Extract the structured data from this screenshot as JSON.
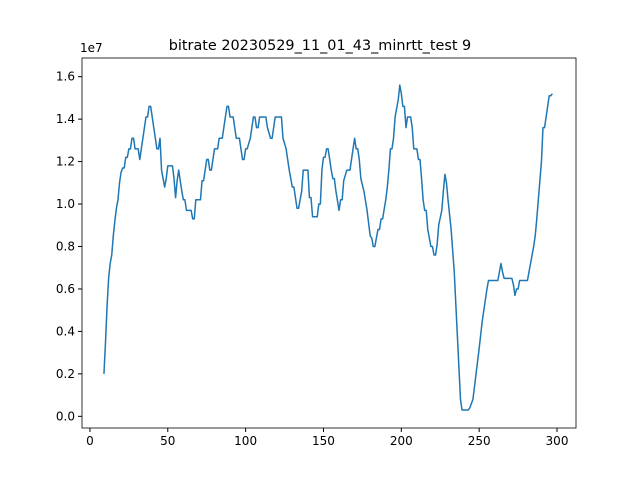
{
  "chart_data": {
    "type": "line",
    "title": "bitrate 20230529_11_01_43_minrtt_test 9",
    "y_offset_label": "1e7",
    "series": [
      {
        "color": "#1f77b4",
        "x": [
          9,
          10,
          11,
          12,
          13,
          14,
          15,
          16,
          17,
          18,
          19,
          20,
          21,
          22,
          23,
          24,
          25,
          26,
          27,
          28,
          29,
          30,
          31,
          32,
          33,
          34,
          35,
          36,
          37,
          38,
          39,
          40,
          41,
          42,
          43,
          44,
          45,
          46,
          47,
          48,
          49,
          50,
          51,
          52,
          53,
          54,
          55,
          56,
          57,
          58,
          59,
          60,
          61,
          62,
          63,
          64,
          65,
          66,
          67,
          68,
          69,
          70,
          71,
          72,
          73,
          74,
          75,
          76,
          77,
          78,
          79,
          80,
          81,
          82,
          83,
          84,
          85,
          86,
          87,
          88,
          89,
          90,
          91,
          92,
          93,
          94,
          95,
          96,
          97,
          98,
          99,
          100,
          101,
          103,
          105,
          106,
          107,
          108,
          109,
          111,
          113,
          114,
          116,
          117,
          119,
          121,
          123,
          124,
          126,
          128,
          130,
          131,
          133,
          134,
          136,
          137,
          139,
          140,
          141,
          142,
          143,
          145,
          146,
          147,
          148,
          149,
          150,
          151,
          152,
          153,
          154,
          155,
          156,
          157,
          158,
          160,
          161,
          162,
          163,
          165,
          166,
          167,
          168,
          170,
          171,
          172,
          173,
          174,
          176,
          178,
          180,
          181,
          182,
          183,
          184,
          185,
          186,
          187,
          188,
          190,
          191,
          192,
          193,
          194,
          195,
          196,
          198,
          199,
          200,
          201,
          202,
          203,
          204,
          206,
          207,
          208,
          210,
          211,
          212,
          213,
          214,
          215,
          216,
          217,
          218,
          219,
          220,
          221,
          222,
          223,
          224,
          226,
          227,
          228,
          229,
          230,
          232,
          234,
          236,
          238,
          239,
          240,
          242,
          243,
          244,
          246,
          248,
          250,
          252,
          254,
          255,
          256,
          258,
          260,
          262,
          263,
          264,
          265,
          266,
          268,
          270,
          271,
          272,
          273,
          274,
          275,
          276,
          278,
          280,
          281,
          282,
          284,
          285,
          286,
          287,
          288,
          290,
          291,
          292,
          293,
          294,
          295,
          296,
          297
        ],
        "values": [
          0.2,
          0.35,
          0.52,
          0.65,
          0.72,
          0.76,
          0.85,
          0.92,
          0.98,
          1.02,
          1.1,
          1.15,
          1.17,
          1.17,
          1.22,
          1.22,
          1.26,
          1.26,
          1.31,
          1.31,
          1.26,
          1.26,
          1.26,
          1.21,
          1.26,
          1.31,
          1.36,
          1.41,
          1.41,
          1.46,
          1.46,
          1.41,
          1.36,
          1.31,
          1.26,
          1.26,
          1.31,
          1.16,
          1.12,
          1.08,
          1.12,
          1.18,
          1.18,
          1.18,
          1.18,
          1.12,
          1.03,
          1.11,
          1.16,
          1.11,
          1.06,
          1.02,
          1.02,
          0.97,
          0.97,
          0.97,
          0.97,
          0.93,
          0.93,
          1.02,
          1.02,
          1.02,
          1.02,
          1.11,
          1.11,
          1.16,
          1.21,
          1.21,
          1.16,
          1.16,
          1.21,
          1.26,
          1.26,
          1.26,
          1.31,
          1.31,
          1.31,
          1.36,
          1.41,
          1.46,
          1.46,
          1.41,
          1.41,
          1.41,
          1.36,
          1.31,
          1.31,
          1.31,
          1.26,
          1.21,
          1.21,
          1.26,
          1.26,
          1.31,
          1.41,
          1.41,
          1.36,
          1.36,
          1.41,
          1.41,
          1.41,
          1.36,
          1.31,
          1.31,
          1.41,
          1.41,
          1.41,
          1.31,
          1.26,
          1.16,
          1.08,
          1.08,
          0.98,
          0.98,
          1.06,
          1.16,
          1.16,
          1.16,
          1.03,
          1.03,
          0.94,
          0.94,
          0.94,
          1.0,
          1.0,
          1.16,
          1.22,
          1.22,
          1.26,
          1.26,
          1.21,
          1.16,
          1.12,
          1.12,
          1.06,
          0.97,
          1.02,
          1.02,
          1.11,
          1.16,
          1.16,
          1.16,
          1.21,
          1.31,
          1.26,
          1.26,
          1.21,
          1.12,
          1.06,
          0.97,
          0.85,
          0.84,
          0.8,
          0.8,
          0.84,
          0.88,
          0.88,
          0.93,
          0.93,
          1.02,
          1.08,
          1.16,
          1.26,
          1.26,
          1.31,
          1.41,
          1.49,
          1.56,
          1.52,
          1.46,
          1.46,
          1.36,
          1.41,
          1.41,
          1.36,
          1.26,
          1.26,
          1.21,
          1.21,
          1.12,
          1.02,
          0.97,
          0.97,
          0.88,
          0.84,
          0.8,
          0.8,
          0.76,
          0.76,
          0.81,
          0.9,
          0.97,
          1.06,
          1.14,
          1.1,
          1.02,
          0.88,
          0.68,
          0.38,
          0.08,
          0.03,
          0.03,
          0.03,
          0.03,
          0.04,
          0.08,
          0.2,
          0.32,
          0.45,
          0.55,
          0.6,
          0.64,
          0.64,
          0.64,
          0.64,
          0.68,
          0.72,
          0.68,
          0.65,
          0.65,
          0.65,
          0.65,
          0.62,
          0.57,
          0.6,
          0.6,
          0.64,
          0.64,
          0.64,
          0.64,
          0.68,
          0.76,
          0.8,
          0.85,
          0.93,
          1.02,
          1.2,
          1.36,
          1.36,
          1.41,
          1.46,
          1.51,
          1.51,
          1.52
        ]
      }
    ],
    "xlim": [
      -5.1,
      312.2
    ],
    "xticks": [
      0,
      50,
      100,
      150,
      200,
      250,
      300
    ],
    "ylim": [
      -0.055,
      1.688
    ],
    "yticks": [
      {
        "value": 0,
        "label": "0.0"
      },
      0.2,
      0.4,
      0.6,
      0.8,
      {
        "value": 1,
        "label": "1.0"
      },
      1.2,
      1.4,
      1.6
    ]
  }
}
